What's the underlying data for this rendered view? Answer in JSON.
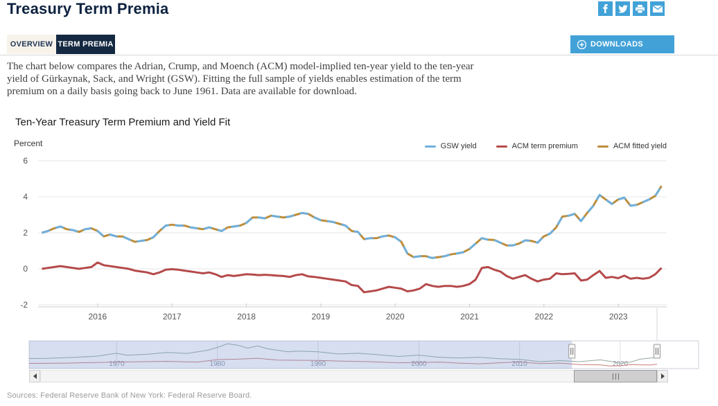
{
  "header": {
    "title": "Treasury Term Premia"
  },
  "share": {
    "icons": [
      "facebook",
      "twitter",
      "print",
      "email"
    ]
  },
  "tabs": [
    {
      "label": "OVERVIEW",
      "active": false
    },
    {
      "label": "TERM PREMIA",
      "active": true
    }
  ],
  "downloads": {
    "label": "DOWNLOADS"
  },
  "description": "The chart below compares the Adrian, Crump, and Moench (ACM) model-implied ten-year yield to the ten-year yield of Gürkaynak, Sack, and Wright (GSW). Fitting the full sample of yields enables estimation of the term premium on a daily basis going back to June 1961. Data are available for download.",
  "sources": "Sources: Federal Reserve Bank of New York: Federal Reserve Board.",
  "colors": {
    "accent_blue": "#42a2d8",
    "navy": "#142941",
    "gsw": "#6fb0dd",
    "acm_tp": "#b5494a",
    "acm_fit": "#bd8d3a"
  },
  "chart_data": [
    {
      "id": "main",
      "type": "line",
      "title": "Ten-Year Treasury Term Premium and Yield Fit",
      "xlabel": "",
      "ylabel": "Percent",
      "ylim": [
        -2,
        6
      ],
      "yticks": [
        6,
        4,
        2,
        0,
        -2
      ],
      "xlim": [
        2015.2,
        2023.65
      ],
      "xticks": [
        2016,
        2017,
        2018,
        2019,
        2020,
        2021,
        2022,
        2023
      ],
      "grid": "horizontal",
      "legend_position": "top-right",
      "x_unit": "year",
      "y_unit": "percent",
      "series": [
        {
          "name": "GSW yield",
          "color": "#6fb0dd",
          "style": "dashed-overlap-on-top",
          "x0": 2015.25,
          "dx": 0.0833,
          "y": [
            2.0,
            2.1,
            2.25,
            2.35,
            2.2,
            2.15,
            2.05,
            2.2,
            2.25,
            2.1,
            1.8,
            1.9,
            1.8,
            1.8,
            1.65,
            1.5,
            1.55,
            1.6,
            1.75,
            2.1,
            2.4,
            2.45,
            2.4,
            2.4,
            2.3,
            2.25,
            2.2,
            2.3,
            2.2,
            2.1,
            2.3,
            2.35,
            2.4,
            2.55,
            2.85,
            2.85,
            2.8,
            2.95,
            2.9,
            2.85,
            2.9,
            3.0,
            3.1,
            3.05,
            2.85,
            2.7,
            2.65,
            2.6,
            2.5,
            2.4,
            2.1,
            2.05,
            1.65,
            1.7,
            1.7,
            1.8,
            1.85,
            1.75,
            1.5,
            0.85,
            0.65,
            0.7,
            0.7,
            0.6,
            0.65,
            0.7,
            0.8,
            0.85,
            0.92,
            1.1,
            1.4,
            1.7,
            1.62,
            1.6,
            1.45,
            1.3,
            1.3,
            1.4,
            1.58,
            1.55,
            1.45,
            1.8,
            1.95,
            2.3,
            2.9,
            2.95,
            3.05,
            2.65,
            3.1,
            3.5,
            4.1,
            3.85,
            3.6,
            3.85,
            3.95,
            3.5,
            3.55,
            3.7,
            3.85,
            4.05,
            4.6
          ]
        },
        {
          "name": "ACM term premium",
          "color": "#b5494a",
          "style": "solid",
          "x0": 2015.25,
          "dx": 0.0833,
          "y": [
            0.0,
            0.05,
            0.1,
            0.15,
            0.1,
            0.05,
            0.0,
            0.05,
            0.1,
            0.35,
            0.2,
            0.15,
            0.1,
            0.05,
            0.0,
            -0.1,
            -0.15,
            -0.2,
            -0.3,
            -0.2,
            -0.05,
            -0.02,
            -0.05,
            -0.1,
            -0.15,
            -0.2,
            -0.25,
            -0.2,
            -0.3,
            -0.45,
            -0.35,
            -0.4,
            -0.35,
            -0.3,
            -0.32,
            -0.35,
            -0.33,
            -0.35,
            -0.38,
            -0.4,
            -0.45,
            -0.35,
            -0.3,
            -0.42,
            -0.45,
            -0.5,
            -0.55,
            -0.6,
            -0.65,
            -0.7,
            -0.9,
            -0.95,
            -1.3,
            -1.25,
            -1.2,
            -1.1,
            -1.0,
            -1.05,
            -1.1,
            -1.25,
            -1.2,
            -1.1,
            -0.85,
            -0.95,
            -1.0,
            -0.95,
            -0.95,
            -1.0,
            -0.95,
            -0.85,
            -0.6,
            0.05,
            0.1,
            -0.05,
            -0.15,
            -0.4,
            -0.55,
            -0.45,
            -0.35,
            -0.55,
            -0.7,
            -0.6,
            -0.55,
            -0.25,
            -0.3,
            -0.28,
            -0.25,
            -0.65,
            -0.6,
            -0.35,
            -0.12,
            -0.5,
            -0.45,
            -0.52,
            -0.38,
            -0.55,
            -0.5,
            -0.55,
            -0.5,
            -0.3,
            0.05
          ]
        },
        {
          "name": "ACM fitted yield",
          "color": "#bd8d3a",
          "style": "solid-under-gsw",
          "x0": 2015.25,
          "dx": 0.0833,
          "y": [
            2.0,
            2.1,
            2.25,
            2.35,
            2.2,
            2.15,
            2.05,
            2.2,
            2.25,
            2.1,
            1.8,
            1.9,
            1.8,
            1.8,
            1.65,
            1.5,
            1.55,
            1.6,
            1.75,
            2.1,
            2.4,
            2.45,
            2.4,
            2.4,
            2.3,
            2.25,
            2.2,
            2.3,
            2.2,
            2.1,
            2.3,
            2.35,
            2.4,
            2.55,
            2.85,
            2.85,
            2.8,
            2.95,
            2.9,
            2.85,
            2.9,
            3.0,
            3.1,
            3.05,
            2.85,
            2.7,
            2.65,
            2.6,
            2.5,
            2.4,
            2.1,
            2.05,
            1.65,
            1.7,
            1.7,
            1.8,
            1.85,
            1.75,
            1.5,
            0.85,
            0.65,
            0.7,
            0.7,
            0.6,
            0.65,
            0.7,
            0.8,
            0.85,
            0.92,
            1.1,
            1.4,
            1.7,
            1.62,
            1.6,
            1.45,
            1.3,
            1.3,
            1.4,
            1.58,
            1.55,
            1.45,
            1.8,
            1.95,
            2.3,
            2.9,
            2.95,
            3.05,
            2.65,
            3.1,
            3.5,
            4.1,
            3.85,
            3.6,
            3.85,
            3.95,
            3.5,
            3.55,
            3.7,
            3.85,
            4.05,
            4.6
          ]
        }
      ]
    },
    {
      "id": "navigator",
      "type": "line",
      "title": "",
      "xlim": [
        1961.3,
        2023.65
      ],
      "xticks": [
        1970,
        1980,
        1990,
        2000,
        2010,
        2020
      ],
      "ylim": [
        -2,
        15
      ],
      "selected_window": [
        2015.2,
        2023.65
      ],
      "series": [
        {
          "name": "ten-year yield (full history)",
          "color": "#95a79b",
          "x": [
            1961.3,
            1963,
            1966,
            1968,
            1970,
            1971,
            1973,
            1975,
            1977,
            1979,
            1980,
            1981,
            1982,
            1983,
            1984,
            1985,
            1987,
            1988,
            1990,
            1992,
            1994,
            1996,
            1998,
            2000,
            2002,
            2004,
            2006,
            2008,
            2010,
            2012,
            2014,
            2016,
            2018,
            2019,
            2020,
            2021,
            2022,
            2023,
            2023.65
          ],
          "y": [
            3.9,
            4.0,
            4.8,
            5.5,
            7.5,
            6.2,
            6.8,
            8.0,
            7.4,
            9.5,
            11.5,
            14.0,
            13.0,
            11.0,
            12.5,
            10.5,
            8.5,
            9.0,
            8.5,
            7.0,
            7.5,
            6.5,
            5.3,
            6.2,
            4.8,
            4.3,
            4.8,
            3.8,
            3.4,
            1.8,
            2.5,
            1.8,
            3.0,
            2.0,
            0.7,
            1.5,
            3.5,
            4.3,
            4.6
          ]
        },
        {
          "name": "term premium (full history)",
          "color": "#c97b77",
          "x": [
            1961.3,
            1965,
            1970,
            1975,
            1978,
            1980,
            1982,
            1984,
            1986,
            1990,
            1992,
            1995,
            1998,
            2000,
            2002,
            2004,
            2006,
            2008,
            2010,
            2012,
            2014,
            2016,
            2018,
            2019,
            2020,
            2021,
            2022,
            2023,
            2023.65
          ],
          "y": [
            0.6,
            0.8,
            1.5,
            2.0,
            1.5,
            3.2,
            3.5,
            4.1,
            2.8,
            2.6,
            2.2,
            1.8,
            1.0,
            1.2,
            1.5,
            0.8,
            0.3,
            1.0,
            1.6,
            0.5,
            0.8,
            -0.2,
            -0.4,
            -1.2,
            -1.0,
            -0.2,
            -0.4,
            -0.5,
            0.0
          ]
        }
      ]
    }
  ]
}
